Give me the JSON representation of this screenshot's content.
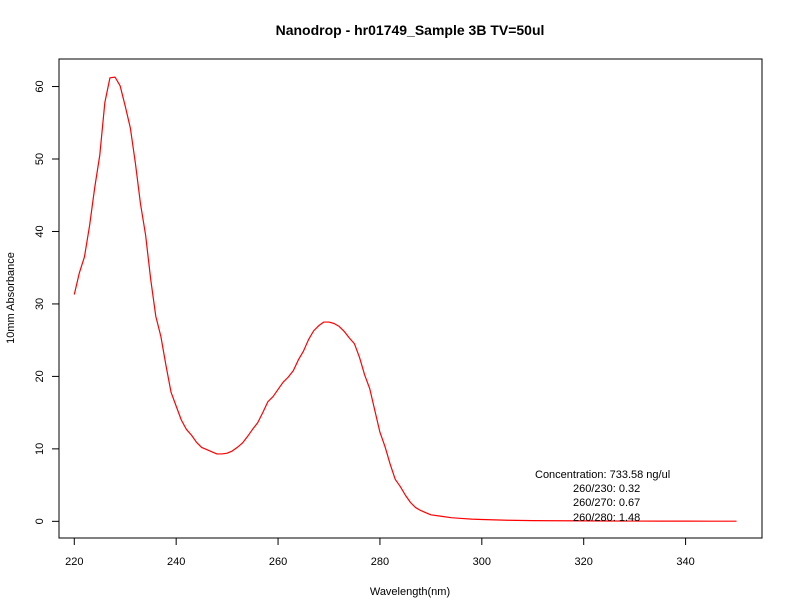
{
  "chart_data": {
    "type": "line",
    "title": "Nanodrop - hr01749_Sample 3B  TV=50ul",
    "xlabel": "Wavelength(nm)",
    "ylabel": "10mm Absorbance",
    "xlim": [
      217,
      355
    ],
    "ylim": [
      -2.3,
      63.8
    ],
    "xticks": [
      220,
      240,
      260,
      280,
      300,
      320,
      340
    ],
    "yticks": [
      0,
      10,
      20,
      30,
      40,
      50,
      60
    ],
    "series": [
      {
        "color": "#ff0000",
        "x": [
          220,
          221,
          222,
          223,
          224,
          225,
          226,
          227,
          228,
          229,
          230,
          231,
          232,
          233,
          234,
          235,
          236,
          237,
          238,
          239,
          240,
          241,
          242,
          243,
          244,
          245,
          246,
          247,
          248,
          249,
          250,
          251,
          252,
          253,
          254,
          255,
          256,
          257,
          258,
          259,
          260,
          261,
          262,
          263,
          264,
          265,
          266,
          267,
          268,
          269,
          270,
          271,
          272,
          273,
          274,
          275,
          276,
          277,
          278,
          279,
          280,
          281,
          282,
          283,
          284,
          285,
          286,
          287,
          288,
          289,
          290,
          292,
          294,
          296,
          298,
          300,
          305,
          310,
          315,
          320,
          325,
          330,
          335,
          340,
          345,
          350
        ],
        "y": [
          31.3,
          34.3,
          36.5,
          40.8,
          46.0,
          50.5,
          57.8,
          61.2,
          61.3,
          60.1,
          57.3,
          54.3,
          49.4,
          43.8,
          39.5,
          33.4,
          28.3,
          25.5,
          21.5,
          17.8,
          15.9,
          14.0,
          12.7,
          11.9,
          10.9,
          10.2,
          9.9,
          9.6,
          9.3,
          9.3,
          9.4,
          9.7,
          10.2,
          10.8,
          11.7,
          12.7,
          13.6,
          15.0,
          16.5,
          17.2,
          18.2,
          19.2,
          19.9,
          20.8,
          22.3,
          23.5,
          25.1,
          26.3,
          27.0,
          27.5,
          27.5,
          27.3,
          26.9,
          26.2,
          25.3,
          24.5,
          22.6,
          20.2,
          18.3,
          15.3,
          12.3,
          10.3,
          7.9,
          5.8,
          4.8,
          3.6,
          2.6,
          1.9,
          1.5,
          1.2,
          0.9,
          0.7,
          0.5,
          0.4,
          0.3,
          0.25,
          0.15,
          0.1,
          0.08,
          0.06,
          0.05,
          0.04,
          0.03,
          0.03,
          0.02,
          0.02
        ]
      }
    ],
    "annotations": [
      "Concentration: 733.58 ng/ul",
      "260/230: 0.32",
      "260/270: 0.67",
      "260/280: 1.48"
    ],
    "grid": false,
    "legend": "none"
  }
}
